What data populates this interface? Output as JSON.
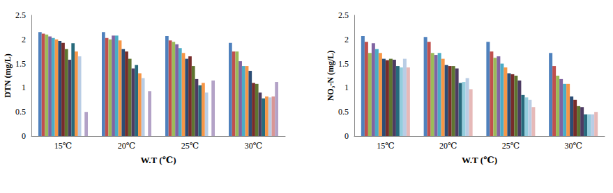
{
  "chart_data": [
    {
      "type": "bar",
      "ylabel": "DTN (mg/L)",
      "xlabel": "W.T (℃)",
      "categories": [
        "15℃",
        "20℃",
        "25℃",
        "30℃"
      ],
      "ylim": [
        0,
        2.5
      ],
      "yticks": [
        0,
        0.5,
        1,
        1.5,
        2,
        2.5
      ],
      "grid": false,
      "series": [
        {
          "color": "#4F81BD",
          "values": [
            2.15,
            2.15,
            2.07,
            1.93
          ]
        },
        {
          "color": "#C0504D",
          "values": [
            2.12,
            2.03,
            1.98,
            1.75
          ]
        },
        {
          "color": "#9BBB59",
          "values": [
            2.1,
            2.0,
            1.95,
            1.75
          ]
        },
        {
          "color": "#8064A2",
          "values": [
            2.06,
            2.08,
            1.9,
            1.55
          ]
        },
        {
          "color": "#4BACC6",
          "values": [
            2.03,
            2.08,
            1.82,
            1.45
          ]
        },
        {
          "color": "#F79646",
          "values": [
            2.0,
            1.98,
            1.72,
            1.45
          ]
        },
        {
          "color": "#2C4D75",
          "values": [
            1.97,
            1.8,
            1.6,
            1.35
          ]
        },
        {
          "color": "#772C2A",
          "values": [
            1.93,
            1.75,
            1.65,
            1.1
          ]
        },
        {
          "color": "#5F7530",
          "values": [
            1.8,
            1.6,
            1.45,
            1.08
          ]
        },
        {
          "color": "#4D3B62",
          "values": [
            1.58,
            1.4,
            1.18,
            0.9
          ]
        },
        {
          "color": "#276A7C",
          "values": [
            1.92,
            1.47,
            1.05,
            0.78
          ]
        },
        {
          "color": "#F79646",
          "values": [
            1.75,
            1.3,
            1.1,
            0.82
          ]
        },
        {
          "color": "#B9CDE5",
          "values": [
            1.65,
            1.2,
            0.9,
            0.8
          ]
        },
        {
          "color": "#D99694",
          "values": [
            null,
            null,
            null,
            0.82
          ]
        },
        {
          "color": "#B3A2C7",
          "values": [
            0.5,
            0.93,
            1.15,
            1.12
          ]
        }
      ]
    },
    {
      "type": "bar",
      "ylabel": "NO₃-N (mg/L)",
      "xlabel": "W.T (℃)",
      "categories": [
        "15℃",
        "20℃",
        "25℃",
        "30℃"
      ],
      "ylim": [
        0,
        2.5
      ],
      "yticks": [
        0,
        0.5,
        1,
        1.5,
        2,
        2.5
      ],
      "grid": false,
      "series": [
        {
          "color": "#4F81BD",
          "values": [
            2.07,
            2.05,
            1.95,
            1.72
          ]
        },
        {
          "color": "#C0504D",
          "values": [
            1.95,
            1.95,
            1.75,
            1.45
          ]
        },
        {
          "color": "#9BBB59",
          "values": [
            1.72,
            1.72,
            1.62,
            1.25
          ]
        },
        {
          "color": "#8064A2",
          "values": [
            1.92,
            1.68,
            1.65,
            1.18
          ]
        },
        {
          "color": "#4BACC6",
          "values": [
            1.8,
            1.72,
            1.5,
            1.08
          ]
        },
        {
          "color": "#F79646",
          "values": [
            1.72,
            1.6,
            1.42,
            1.08
          ]
        },
        {
          "color": "#2C4D75",
          "values": [
            1.6,
            1.47,
            1.3,
            0.82
          ]
        },
        {
          "color": "#772C2A",
          "values": [
            1.57,
            1.45,
            1.28,
            0.75
          ]
        },
        {
          "color": "#5F7530",
          "values": [
            1.6,
            1.45,
            1.25,
            0.62
          ]
        },
        {
          "color": "#4D3B62",
          "values": [
            1.58,
            1.4,
            1.15,
            0.6
          ]
        },
        {
          "color": "#276A7C",
          "values": [
            1.45,
            1.1,
            0.85,
            0.45
          ]
        },
        {
          "color": "#93CDDD",
          "values": [
            1.42,
            1.12,
            0.8,
            0.45
          ]
        },
        {
          "color": "#B9CDE5",
          "values": [
            1.6,
            1.2,
            0.75,
            0.45
          ]
        },
        {
          "color": "#E6B9B8",
          "values": [
            1.42,
            0.97,
            0.6,
            0.5
          ]
        }
      ]
    }
  ]
}
